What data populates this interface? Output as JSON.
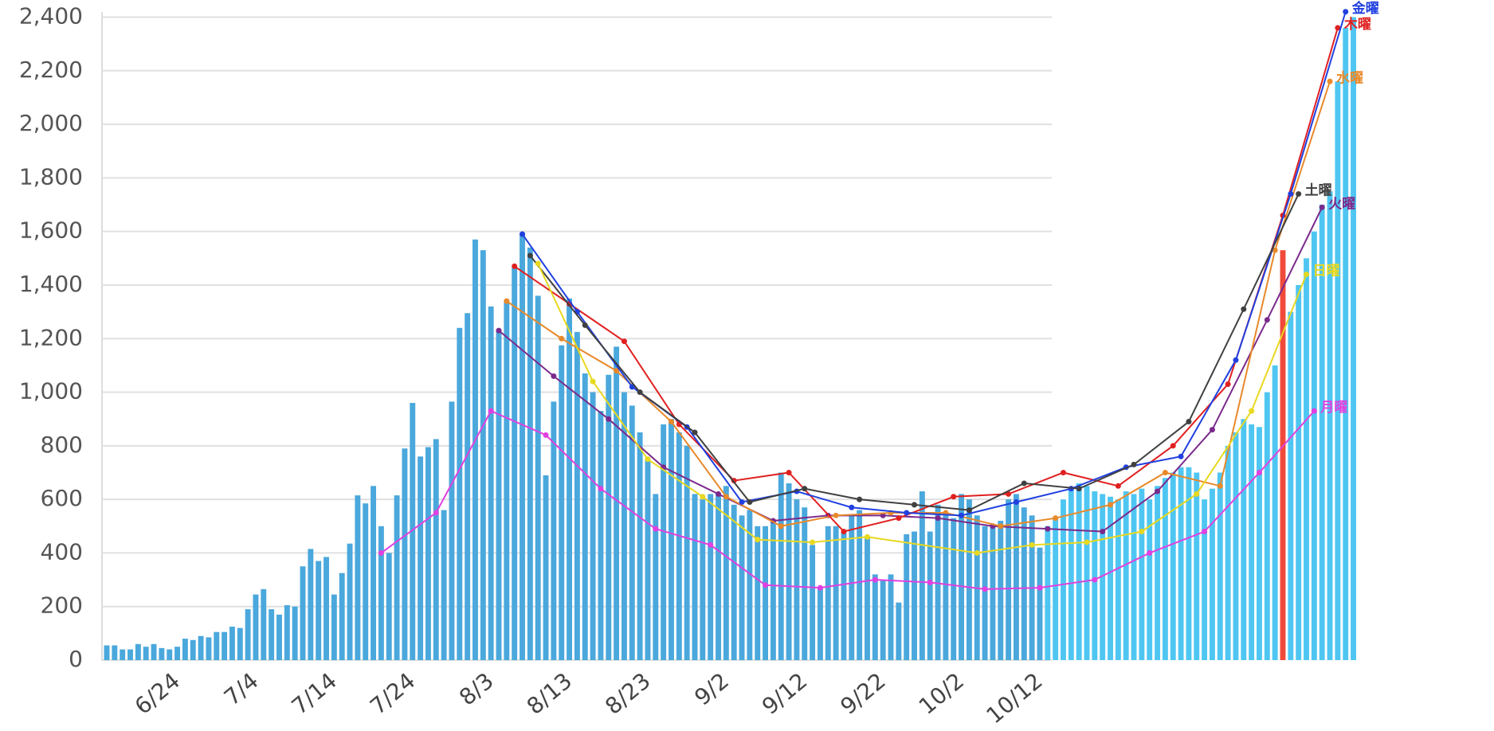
{
  "chart_data": {
    "type": "bar",
    "x": [
      "6/15",
      "6/16",
      "6/17",
      "6/18",
      "6/19",
      "6/20",
      "6/21",
      "6/22",
      "6/23",
      "6/24",
      "6/25",
      "6/26",
      "6/27",
      "6/28",
      "6/29",
      "6/30",
      "7/1",
      "7/2",
      "7/3",
      "7/4",
      "7/5",
      "7/6",
      "7/7",
      "7/8",
      "7/9",
      "7/10",
      "7/11",
      "7/12",
      "7/13",
      "7/14",
      "7/15",
      "7/16",
      "7/17",
      "7/18",
      "7/19",
      "7/20",
      "7/21",
      "7/22",
      "7/23",
      "7/24",
      "7/25",
      "7/26",
      "7/27",
      "7/28",
      "7/29",
      "7/30",
      "7/31",
      "8/1",
      "8/2",
      "8/3",
      "8/4",
      "8/5",
      "8/6",
      "8/7",
      "8/8",
      "8/9",
      "8/10",
      "8/11",
      "8/12",
      "8/13",
      "8/14",
      "8/15",
      "8/16",
      "8/17",
      "8/18",
      "8/19",
      "8/20",
      "8/21",
      "8/22",
      "8/23",
      "8/24",
      "8/25",
      "8/26",
      "8/27",
      "8/28",
      "8/29",
      "8/30",
      "8/31",
      "9/1",
      "9/2",
      "9/3",
      "9/4",
      "9/5",
      "9/6",
      "9/7",
      "9/8",
      "9/9",
      "9/10",
      "9/11",
      "9/12",
      "9/13",
      "9/14",
      "9/15",
      "9/16",
      "9/17",
      "9/18",
      "9/19",
      "9/20",
      "9/21",
      "9/22",
      "9/23",
      "9/24",
      "9/25",
      "9/26",
      "9/27",
      "9/28",
      "9/29",
      "9/30",
      "10/1",
      "10/2",
      "10/3",
      "10/4",
      "10/5",
      "10/6",
      "10/7",
      "10/8",
      "10/9",
      "10/10",
      "10/11",
      "10/12",
      "10/13",
      "10/14",
      "10/15",
      "10/16",
      "10/17",
      "10/18",
      "10/19",
      "10/20",
      "10/21",
      "10/22",
      "10/23",
      "10/24",
      "10/25",
      "10/26",
      "10/27",
      "10/28",
      "10/29",
      "10/30",
      "10/31",
      "11/1",
      "11/2",
      "11/3",
      "11/4",
      "11/5",
      "11/6",
      "11/7",
      "11/8",
      "11/9",
      "11/10",
      "11/11",
      "11/12",
      "11/13",
      "11/14",
      "11/15",
      "11/16",
      "11/17",
      "11/18",
      "11/19",
      "11/20",
      "11/21"
    ],
    "values": [
      55,
      55,
      40,
      40,
      60,
      50,
      60,
      45,
      40,
      50,
      80,
      75,
      90,
      85,
      105,
      105,
      125,
      120,
      190,
      245,
      265,
      190,
      170,
      205,
      200,
      350,
      415,
      370,
      385,
      245,
      325,
      435,
      615,
      585,
      650,
      500,
      400,
      615,
      790,
      960,
      760,
      795,
      825,
      560,
      965,
      1240,
      1295,
      1570,
      1530,
      1320,
      1230,
      1340,
      1465,
      1595,
      1540,
      1360,
      690,
      965,
      1175,
      1350,
      1225,
      1070,
      1000,
      930,
      1065,
      1170,
      1000,
      950,
      850,
      750,
      620,
      880,
      900,
      850,
      800,
      620,
      600,
      620,
      620,
      650,
      580,
      540,
      560,
      500,
      500,
      520,
      700,
      660,
      600,
      570,
      430,
      270,
      500,
      500,
      480,
      540,
      560,
      460,
      320,
      300,
      320,
      215,
      470,
      480,
      630,
      480,
      580,
      540,
      530,
      620,
      600,
      540,
      500,
      500,
      520,
      600,
      620,
      570,
      540,
      420,
      500,
      530,
      600,
      640,
      660,
      650,
      630,
      620,
      610,
      600,
      630,
      620,
      640,
      600,
      650,
      680,
      700,
      720,
      720,
      700,
      600,
      640,
      700,
      800,
      850,
      900,
      880,
      870,
      1000,
      1100,
      1530,
      1300,
      1400,
      1500,
      1600,
      1700,
      1750,
      2160,
      2360,
      2400
    ],
    "color": "#4aa8dc",
    "recent_from": "10/13",
    "recent_color": "#4fc6f2",
    "highlight_x": "11/12",
    "highlight_color": "#f04a3a",
    "xticks": [
      "6/24",
      "7/4",
      "7/14",
      "7/24",
      "8/3",
      "8/13",
      "8/23",
      "9/2",
      "9/12",
      "9/22",
      "10/2",
      "10/12"
    ],
    "ylim": [
      0,
      2400
    ],
    "yticks": [
      0,
      200,
      400,
      600,
      800,
      {
        "value": 1000,
        "label": "1,000"
      },
      {
        "value": 1200,
        "label": "1,200"
      },
      {
        "value": 1400,
        "label": "1,400"
      },
      {
        "value": 1600,
        "label": "1,600"
      },
      {
        "value": 1800,
        "label": "1,800"
      },
      {
        "value": 2000,
        "label": "2,000"
      },
      {
        "value": 2200,
        "label": "2,200"
      },
      {
        "value": 2400,
        "label": "2,400"
      }
    ],
    "grid": true,
    "lines": [
      {
        "name": "月曜",
        "color": "#e040e0",
        "x": [
          "7/20",
          "7/27",
          "8/3",
          "8/10",
          "8/17",
          "8/24",
          "8/31",
          "9/7",
          "9/14",
          "9/21",
          "9/28",
          "10/5",
          "10/12",
          "10/19",
          "10/26",
          "11/2",
          "11/9",
          "11/16"
        ],
        "values": [
          400,
          550,
          930,
          840,
          640,
          490,
          430,
          280,
          270,
          300,
          290,
          265,
          270,
          300,
          400,
          480,
          700,
          930
        ]
      },
      {
        "name": "火曜",
        "color": "#7b2a8c",
        "x": [
          "8/4",
          "8/11",
          "8/18",
          "8/25",
          "9/1",
          "9/8",
          "9/15",
          "9/22",
          "9/29",
          "10/6",
          "10/13",
          "10/20",
          "10/27",
          "11/3",
          "11/10",
          "11/17"
        ],
        "values": [
          1230,
          1060,
          900,
          720,
          620,
          520,
          540,
          540,
          530,
          500,
          490,
          480,
          630,
          860,
          1270,
          1690
        ]
      },
      {
        "name": "水曜",
        "color": "#e8892a",
        "x": [
          "8/5",
          "8/12",
          "8/19",
          "8/26",
          "9/2",
          "9/9",
          "9/16",
          "9/23",
          "9/30",
          "10/7",
          "10/14",
          "10/21",
          "10/28",
          "11/4",
          "11/11",
          "11/18"
        ],
        "values": [
          1340,
          1200,
          1080,
          890,
          610,
          500,
          540,
          550,
          550,
          500,
          530,
          580,
          700,
          650,
          1530,
          2160
        ]
      },
      {
        "name": "木曜",
        "color": "#e02020",
        "x": [
          "8/6",
          "8/13",
          "8/20",
          "8/27",
          "9/3",
          "9/10",
          "9/17",
          "9/24",
          "10/1",
          "10/8",
          "10/15",
          "10/22",
          "10/29",
          "11/5",
          "11/12",
          "11/19"
        ],
        "values": [
          1470,
          1330,
          1190,
          880,
          670,
          700,
          480,
          530,
          610,
          620,
          700,
          650,
          800,
          1030,
          1660,
          2360
        ]
      },
      {
        "name": "金曜",
        "color": "#2040e0",
        "x": [
          "8/7",
          "8/14",
          "8/21",
          "8/28",
          "9/4",
          "9/11",
          "9/18",
          "9/25",
          "10/2",
          "10/9",
          "10/16",
          "10/23",
          "10/30",
          "11/6",
          "11/13",
          "11/20"
        ],
        "values": [
          1590,
          1300,
          1020,
          870,
          590,
          630,
          570,
          550,
          540,
          590,
          640,
          720,
          760,
          1120,
          1740,
          2420
        ]
      },
      {
        "name": "土曜",
        "color": "#404040",
        "x": [
          "8/8",
          "8/15",
          "8/22",
          "8/29",
          "9/5",
          "9/12",
          "9/19",
          "9/26",
          "10/3",
          "10/10",
          "10/17",
          "10/24",
          "10/31",
          "11/7",
          "11/14"
        ],
        "values": [
          1510,
          1250,
          1000,
          850,
          590,
          640,
          600,
          580,
          560,
          660,
          640,
          730,
          890,
          1310,
          1740
        ]
      },
      {
        "name": "日曜",
        "color": "#e8d820",
        "x": [
          "8/9",
          "8/16",
          "8/23",
          "8/30",
          "9/6",
          "9/13",
          "9/20",
          "10/4",
          "10/11",
          "10/18",
          "10/25",
          "11/1",
          "11/8",
          "11/15"
        ],
        "values": [
          1480,
          1040,
          750,
          610,
          450,
          440,
          460,
          400,
          430,
          440,
          480,
          620,
          930,
          1440
        ]
      }
    ]
  }
}
